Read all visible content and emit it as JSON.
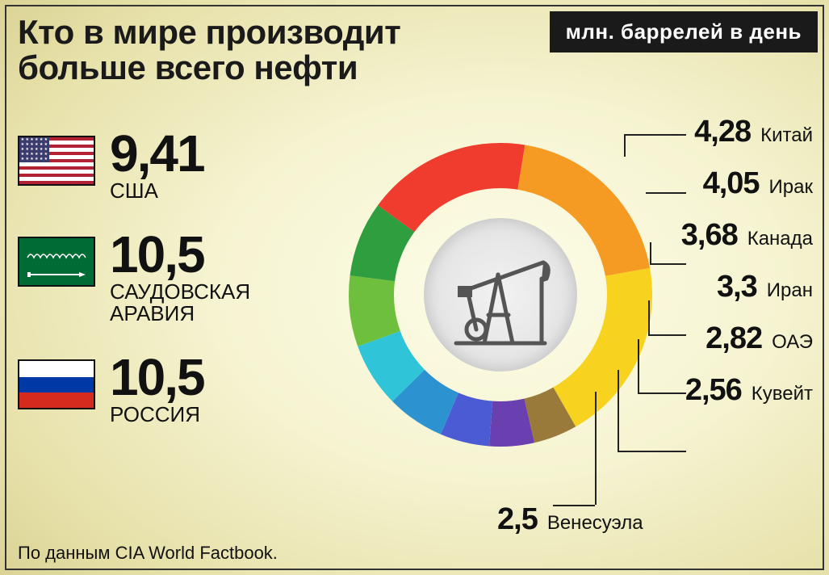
{
  "title_line1": "Кто в мире производит",
  "title_line2": "больше всего нефти",
  "badge": "млн. баррелей в день",
  "source": "По данным CIA World Factbook.",
  "chart": {
    "type": "donut",
    "inner_radius_ratio": 0.5,
    "outer_radius": 160,
    "stroke_width": 56,
    "background_color": "#f5f3d0",
    "center_fill": "#e8e8e8",
    "segments": [
      {
        "name": "США",
        "value": 9.41,
        "color": "#f03c2e"
      },
      {
        "name": "САУДОВСКАЯ АРАВИЯ",
        "value": 10.5,
        "color": "#f59a23"
      },
      {
        "name": "РОССИЯ",
        "value": 10.5,
        "color": "#f7d21e"
      },
      {
        "name": "Венесуэла",
        "value": 2.5,
        "color": "#9a7a3a"
      },
      {
        "name": "Кувейт",
        "value": 2.56,
        "color": "#6a3fb0"
      },
      {
        "name": "ОАЭ",
        "value": 2.82,
        "color": "#4a5bd4"
      },
      {
        "name": "Иран",
        "value": 3.3,
        "color": "#2c93d0"
      },
      {
        "name": "Канада",
        "value": 3.68,
        "color": "#2fc4d8"
      },
      {
        "name": "Ирак",
        "value": 4.05,
        "color": "#6fbf3f"
      },
      {
        "name": "Китай",
        "value": 4.28,
        "color": "#2e9e3f"
      }
    ]
  },
  "left": [
    {
      "value": "9,41",
      "label": "США",
      "flag": "us"
    },
    {
      "value": "10,5",
      "label": "САУДОВСКАЯ АРАВИЯ",
      "flag": "sa"
    },
    {
      "value": "10,5",
      "label": "РОССИЯ",
      "flag": "ru"
    }
  ],
  "right": [
    {
      "value": "4,28",
      "label": "Китай"
    },
    {
      "value": "4,05",
      "label": "Ирак"
    },
    {
      "value": "3,68",
      "label": "Канада"
    },
    {
      "value": "3,3",
      "label": "Иран"
    },
    {
      "value": "2,82",
      "label": "ОАЭ"
    },
    {
      "value": "2,56",
      "label": "Кувейт"
    }
  ],
  "bottom_left": {
    "value": "2,5",
    "label": "Венесуэла"
  },
  "typography": {
    "title_fontsize": 42,
    "big_value_fontsize": 64,
    "left_label_fontsize": 26,
    "right_value_fontsize": 38,
    "right_label_fontsize": 24,
    "badge_fontsize": 26,
    "source_fontsize": 22
  },
  "flags": {
    "us": {
      "stripes": [
        "#b22234",
        "#fff"
      ],
      "canton": "#3c3b6e"
    },
    "sa": {
      "bg": "#006c35",
      "fg": "#fff"
    },
    "ru": {
      "top": "#fff",
      "mid": "#0039a6",
      "bot": "#d52b1e"
    }
  }
}
